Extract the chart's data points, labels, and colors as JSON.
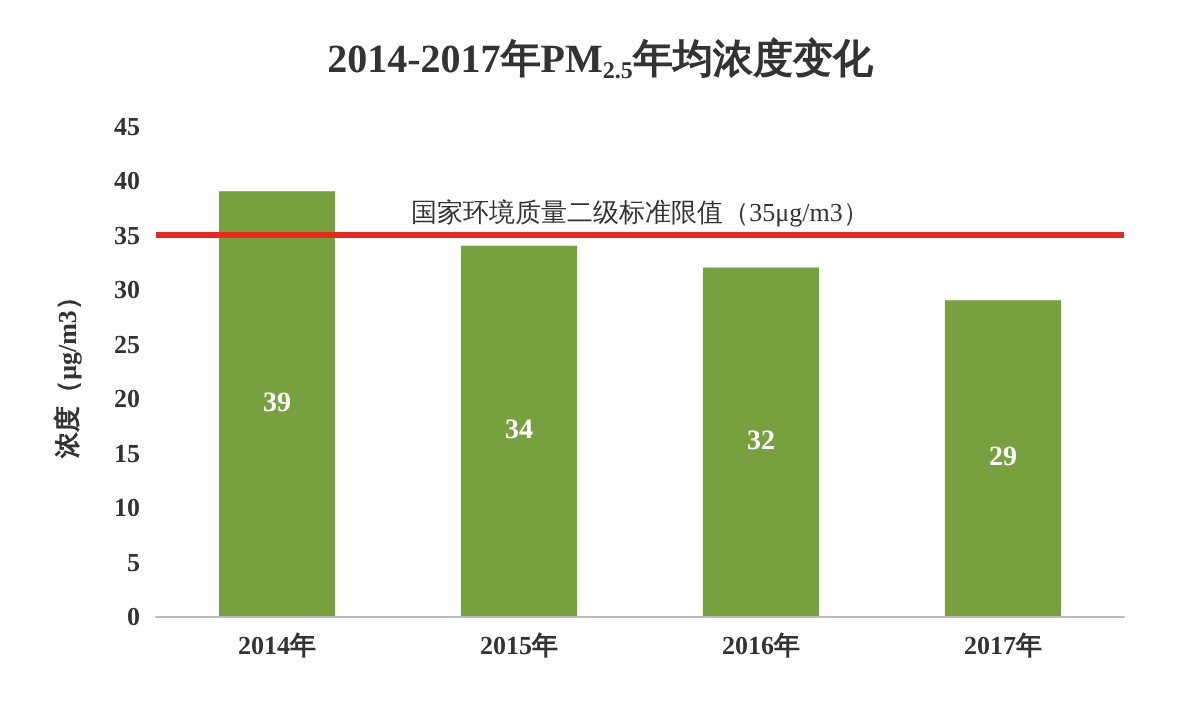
{
  "chart_data": {
    "type": "bar",
    "title": "2014-2017年PM$_{2.5}$年均浓度变化",
    "ylabel": "浓度（μg/m3）",
    "categories": [
      "2014年",
      "2015年",
      "2016年",
      "2017年"
    ],
    "values": [
      39,
      34,
      32,
      29
    ],
    "color": "#77a03f",
    "data_labels": true,
    "ylim": [
      0,
      45
    ],
    "yticks": [
      0,
      5,
      10,
      15,
      20,
      25,
      30,
      35,
      40,
      45
    ],
    "grid": false,
    "ref_lines": [
      {
        "axis": "y",
        "value": 35,
        "label": "国家环境质量二级标准限值（35μg/m3）",
        "color": "#e8281e"
      }
    ]
  }
}
